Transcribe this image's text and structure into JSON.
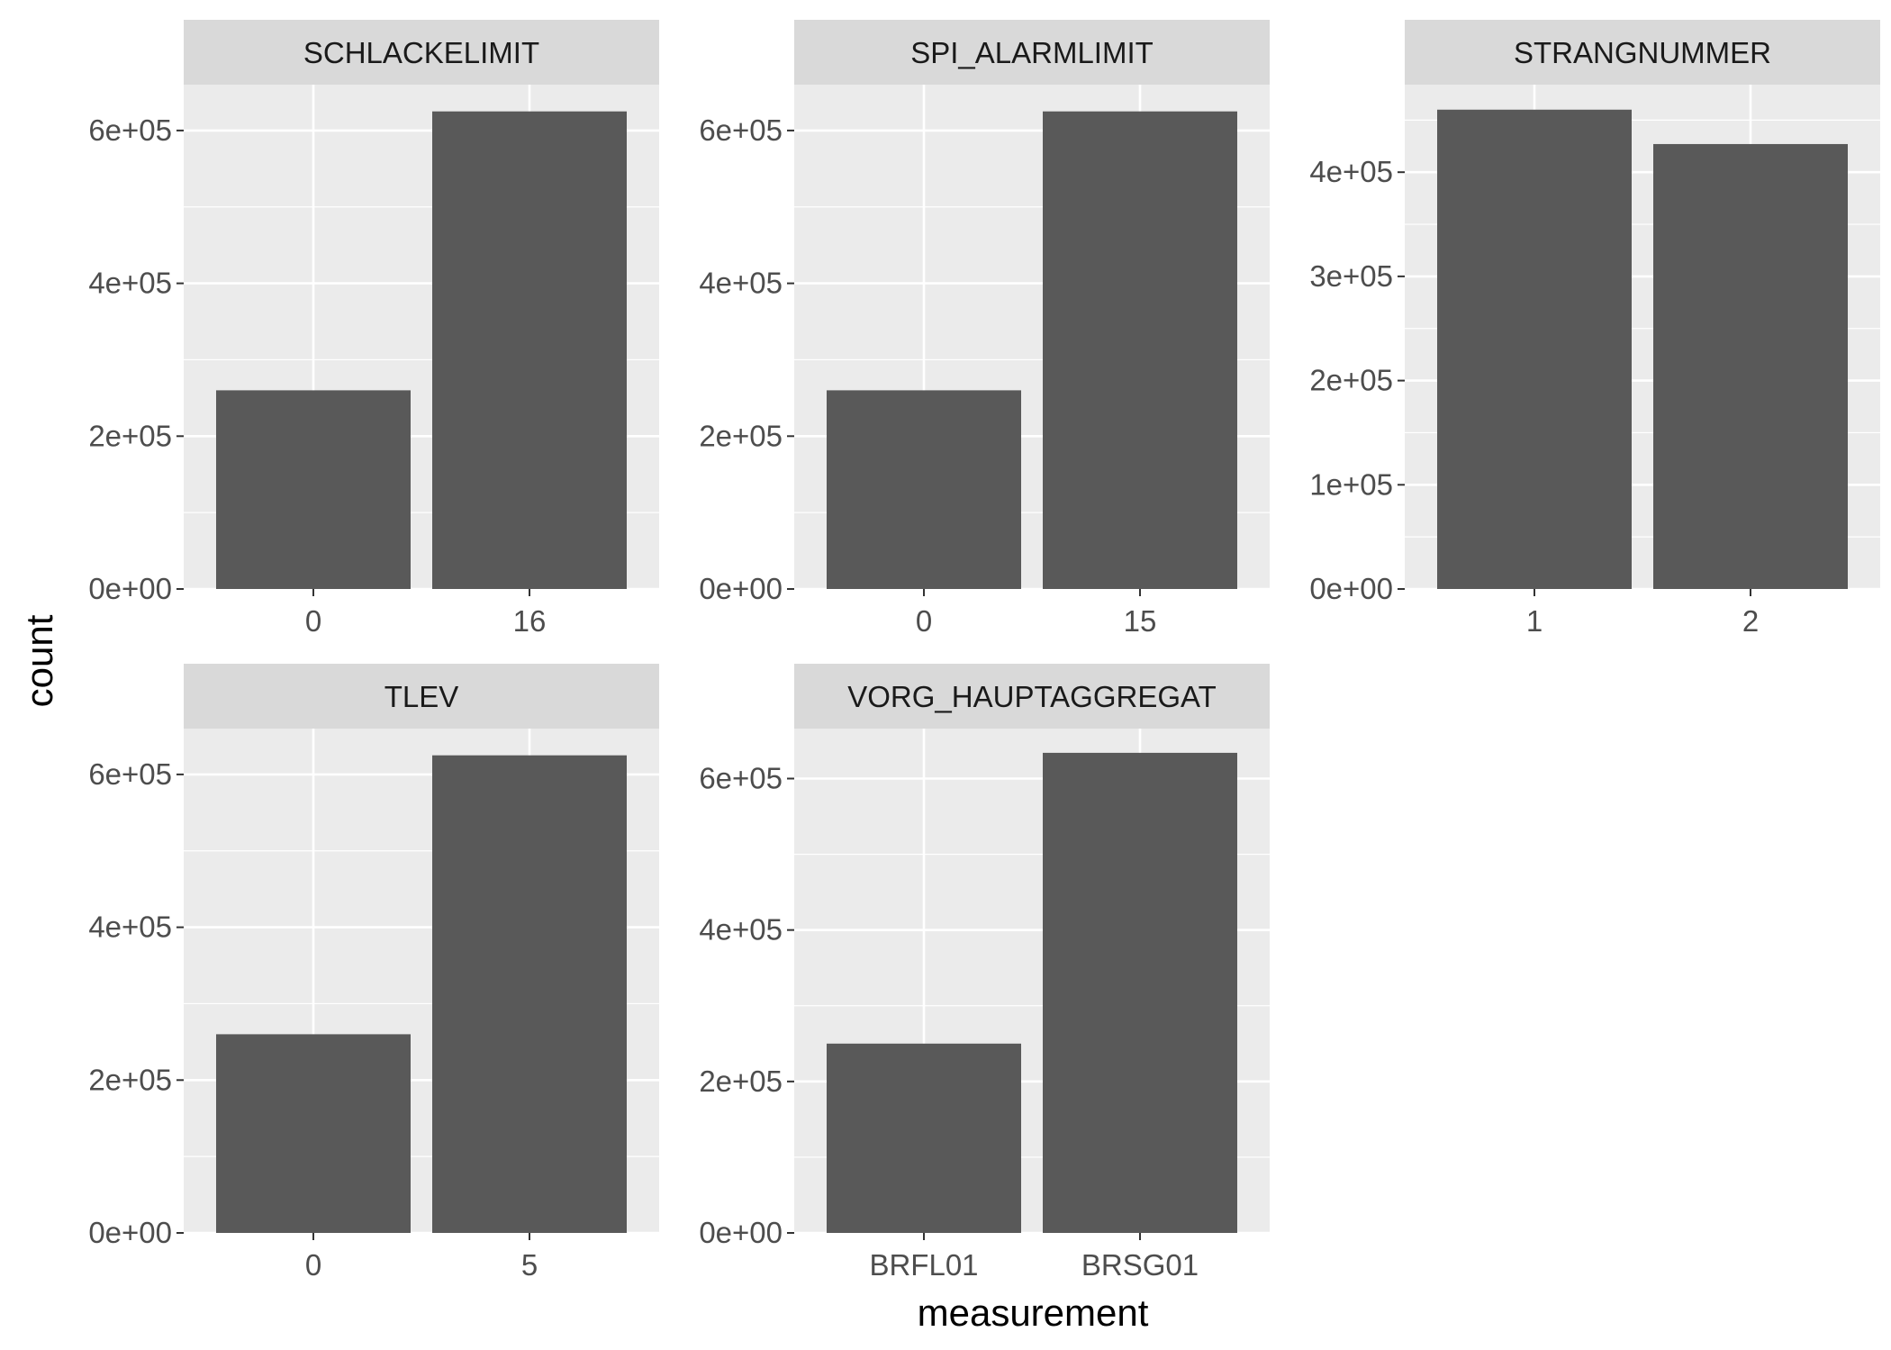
{
  "chart_data": {
    "type": "bar",
    "layout": "facet-wrap",
    "ncol": 3,
    "xlabel": "measurement",
    "ylabel": "count",
    "title": "",
    "colors": {
      "bar": "#595959",
      "panel_bg": "#ebebeb",
      "strip_bg": "#d9d9d9",
      "grid": "#ffffff",
      "tick": "#333333"
    },
    "facets": [
      {
        "name": "SCHLACKELIMIT",
        "categories": [
          "0",
          "16"
        ],
        "values": [
          260000,
          625000
        ],
        "ylim": [
          0,
          660000
        ],
        "yticks": [
          0,
          200000,
          400000,
          600000
        ],
        "ytick_labels": [
          "0e+00",
          "2e+05",
          "4e+05",
          "6e+05"
        ]
      },
      {
        "name": "SPI_ALARMLIMIT",
        "categories": [
          "0",
          "15"
        ],
        "values": [
          260000,
          625000
        ],
        "ylim": [
          0,
          660000
        ],
        "yticks": [
          0,
          200000,
          400000,
          600000
        ],
        "ytick_labels": [
          "0e+00",
          "2e+05",
          "4e+05",
          "6e+05"
        ]
      },
      {
        "name": "STRANGNUMMER",
        "categories": [
          "1",
          "2"
        ],
        "values": [
          460000,
          427000
        ],
        "ylim": [
          0,
          484000
        ],
        "yticks": [
          0,
          100000,
          200000,
          300000,
          400000
        ],
        "ytick_labels": [
          "0e+00",
          "1e+05",
          "2e+05",
          "3e+05",
          "4e+05"
        ]
      },
      {
        "name": "TLEV",
        "categories": [
          "0",
          "5"
        ],
        "values": [
          260000,
          625000
        ],
        "ylim": [
          0,
          660000
        ],
        "yticks": [
          0,
          200000,
          400000,
          600000
        ],
        "ytick_labels": [
          "0e+00",
          "2e+05",
          "4e+05",
          "6e+05"
        ]
      },
      {
        "name": "VORG_HAUPTAGGREGAT",
        "categories": [
          "BRFL01",
          "BRSG01"
        ],
        "values": [
          250000,
          634000
        ],
        "ylim": [
          0,
          666000
        ],
        "yticks": [
          0,
          200000,
          400000,
          600000
        ],
        "ytick_labels": [
          "0e+00",
          "2e+05",
          "4e+05",
          "6e+05"
        ]
      }
    ]
  }
}
